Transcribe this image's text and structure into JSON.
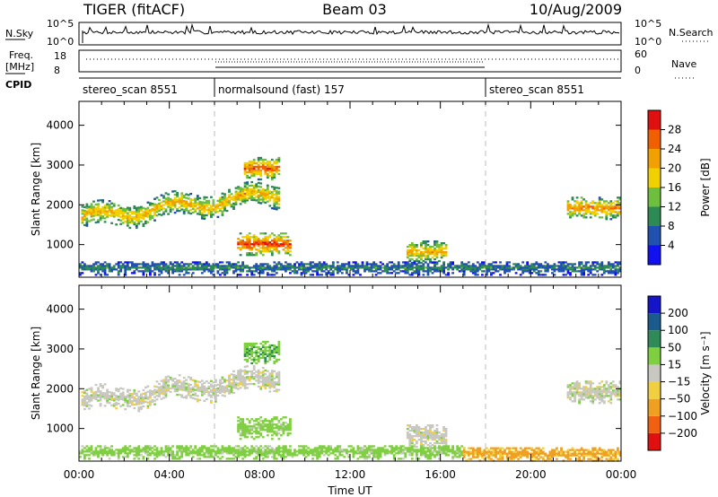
{
  "header": {
    "station": "TIGER (fitACF)",
    "beam": "Beam 03",
    "date": "10/Aug/2009"
  },
  "status_panels": {
    "nsky_label": "N.Sky",
    "nsky_ticks": [
      "10^5",
      "10^0"
    ],
    "nsearch_label": "N.Search",
    "freq_label_line1": "Freq.",
    "freq_label_line2": "[MHz]",
    "freq_ticks": [
      "18",
      "8"
    ],
    "nave_ticks": [
      "60",
      "0"
    ],
    "nave_label": "Nave",
    "cpid_label": "CPID",
    "cpid_segments": [
      {
        "name": "stereo_scan 8551",
        "start_hour": 0,
        "end_hour": 6
      },
      {
        "name": "normalsound (fast) 157",
        "start_hour": 6,
        "end_hour": 18
      },
      {
        "name": "stereo_scan 8551",
        "start_hour": 18,
        "end_hour": 24
      }
    ]
  },
  "x_axis": {
    "label": "Time UT",
    "ticks": [
      "00:00",
      "04:00",
      "08:00",
      "12:00",
      "16:00",
      "20:00",
      "00:00"
    ],
    "range_hours": [
      0,
      24
    ]
  },
  "y_axis": {
    "label": "Slant Range [km]",
    "ticks": [
      1000,
      2000,
      3000,
      4000
    ],
    "range_km": [
      180,
      4600
    ]
  },
  "chart_data": [
    {
      "type": "heatmap",
      "panel": "power",
      "ylabel": "Slant Range [km]",
      "xlabel": "Time UT",
      "colorbar": {
        "label": "Power [dB]",
        "tick_labels": [
          "4",
          "8",
          "12",
          "16",
          "20",
          "24",
          "28"
        ],
        "bins": [
          0,
          4,
          8,
          12,
          16,
          20,
          24,
          28,
          32
        ],
        "colors": [
          "#1010f0",
          "#2050b0",
          "#2e8a55",
          "#6fbf3f",
          "#f0d000",
          "#f0a000",
          "#f06000",
          "#e01010"
        ]
      },
      "features": [
        {
          "name": "main echo band",
          "t_start": 0.1,
          "t_end": 8.8,
          "range_center_start": 1650,
          "range_center_end": 2250,
          "typical_power_db": 18
        },
        {
          "name": "near-range scatter",
          "t_start": 7.0,
          "t_end": 9.3,
          "range_center": 1000,
          "typical_power_db": 24
        },
        {
          "name": "upper patch",
          "t_start": 7.3,
          "t_end": 8.8,
          "range_center": 2900,
          "typical_power_db": 22
        },
        {
          "name": "mid-day patch",
          "t_start": 14.5,
          "t_end": 16.2,
          "range_center": 800,
          "typical_power_db": 18
        },
        {
          "name": "evening echo band",
          "t_start": 21.6,
          "t_end": 24.0,
          "range_center": 1900,
          "typical_power_db": 20
        },
        {
          "name": "ground scatter floor",
          "t_start": 0,
          "t_end": 24,
          "range_center": 400,
          "typical_power_db": 8
        }
      ]
    },
    {
      "type": "heatmap",
      "panel": "velocity",
      "ylabel": "Slant Range [km]",
      "xlabel": "Time UT",
      "colorbar": {
        "label": "Velocity [m s⁻¹]",
        "tick_labels": [
          "200",
          "100",
          "50",
          "15",
          "−15",
          "−50",
          "−100",
          "−200"
        ],
        "colors": [
          "#1414c8",
          "#1a5a8c",
          "#2e8b57",
          "#7fd040",
          "#c8c8c0",
          "#f0d040",
          "#f0a020",
          "#f06010",
          "#e01010"
        ]
      },
      "features": [
        {
          "name": "main echo band",
          "t_start": 0.1,
          "t_end": 8.8,
          "range_center_start": 1650,
          "range_center_end": 2250,
          "typical_velocity": 0
        },
        {
          "name": "near-range scatter",
          "t_start": 7.0,
          "t_end": 9.3,
          "range_center": 1000,
          "typical_velocity": 30
        },
        {
          "name": "upper patch",
          "t_start": 7.3,
          "t_end": 8.8,
          "range_center": 2900,
          "typical_velocity": 40
        },
        {
          "name": "mid-day patch",
          "t_start": 14.5,
          "t_end": 16.2,
          "range_center": 800,
          "typical_velocity": 0
        },
        {
          "name": "evening echo band",
          "t_start": 21.6,
          "t_end": 24.0,
          "range_center": 1900,
          "typical_velocity": 0
        },
        {
          "name": "ground scatter floor morning",
          "t_start": 0,
          "t_end": 17,
          "range_center": 400,
          "typical_velocity": 30
        },
        {
          "name": "ground scatter floor evening",
          "t_start": 17,
          "t_end": 24,
          "range_center": 350,
          "typical_velocity": -60
        }
      ]
    }
  ]
}
